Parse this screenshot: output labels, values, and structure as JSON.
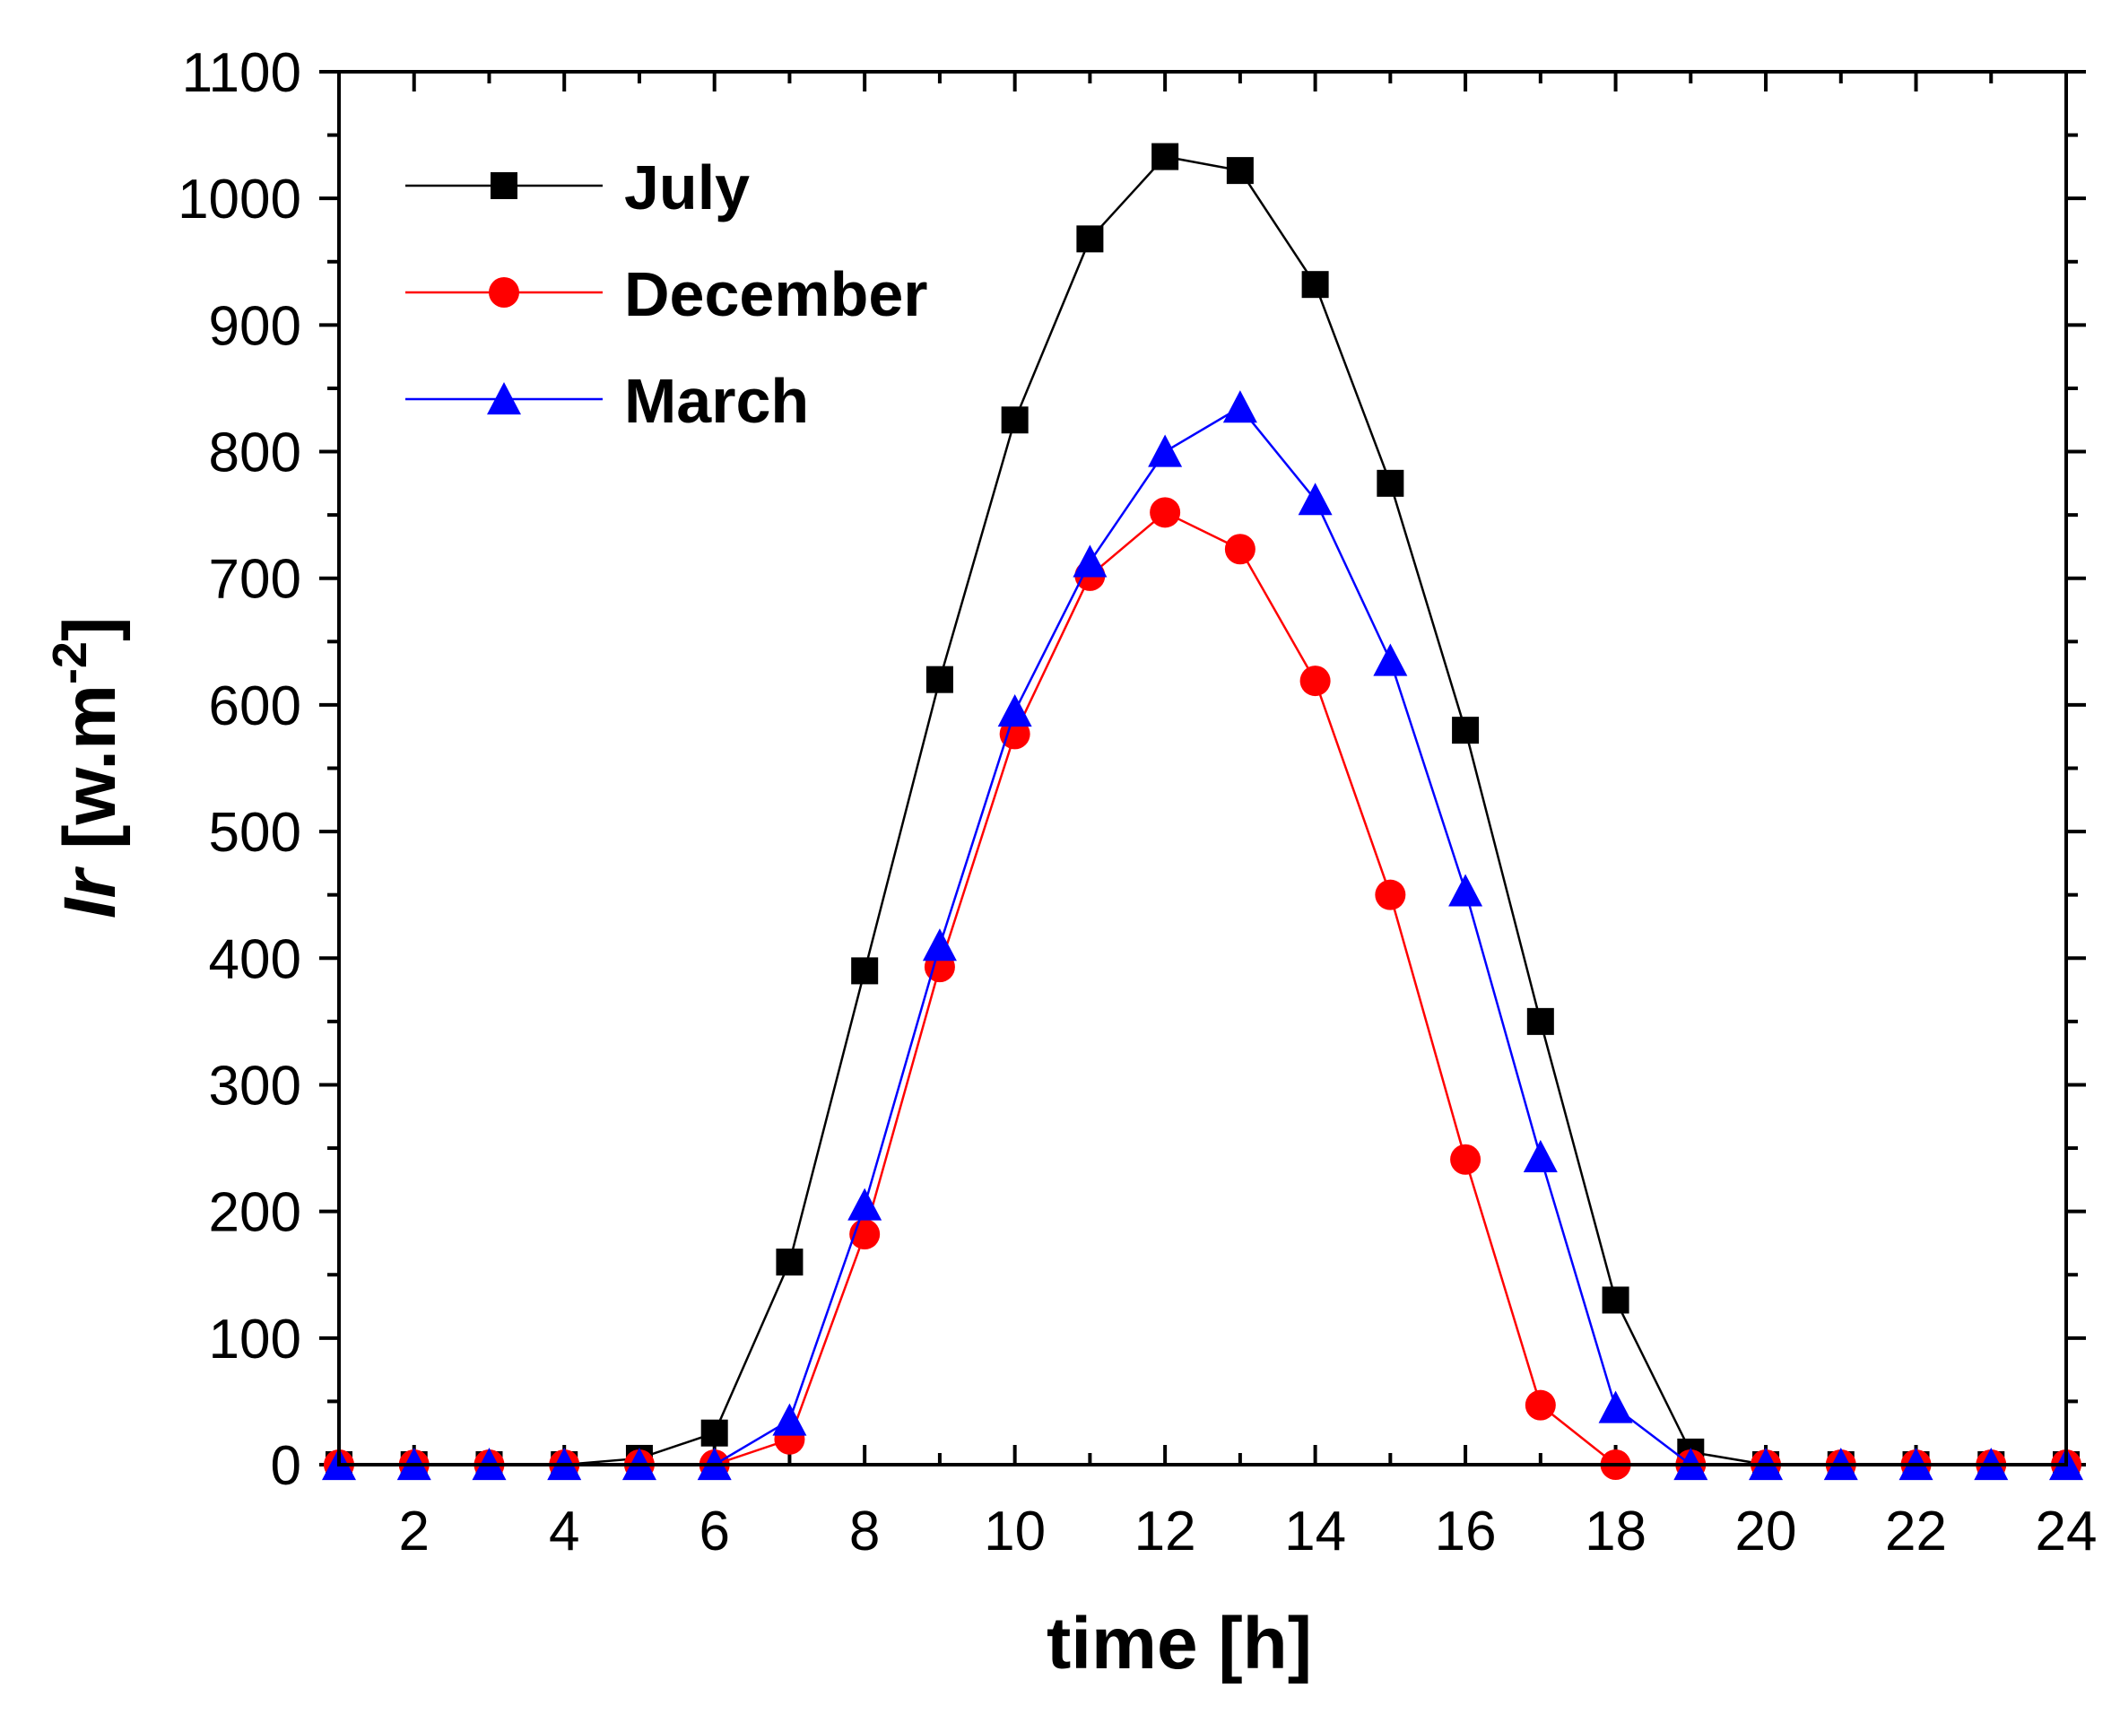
{
  "chart_data": {
    "type": "line",
    "title": "",
    "xlabel": "time [h]",
    "ylabel_main": "Ir",
    "ylabel_unit": " [w.m",
    "ylabel_exp": "-2",
    "ylabel_close": "]",
    "xlim": [
      1,
      24
    ],
    "ylim": [
      0,
      1100
    ],
    "xticks": [
      2,
      4,
      6,
      8,
      10,
      12,
      14,
      16,
      18,
      20,
      22,
      24
    ],
    "yticks": [
      0,
      100,
      200,
      300,
      400,
      500,
      600,
      700,
      800,
      900,
      1000,
      1100
    ],
    "legend_position": "top-left",
    "x": [
      1,
      2,
      3,
      4,
      5,
      6,
      7,
      8,
      9,
      10,
      11,
      12,
      13,
      14,
      15,
      16,
      17,
      18,
      19,
      20,
      21,
      22,
      23,
      24
    ],
    "series": [
      {
        "name": "July",
        "color": "#000000",
        "marker": "square",
        "values": [
          0,
          0,
          0,
          0,
          5,
          25,
          160,
          390,
          620,
          825,
          968,
          1033,
          1022,
          932,
          775,
          580,
          350,
          130,
          10,
          0,
          0,
          0,
          0,
          0
        ]
      },
      {
        "name": "December",
        "color": "#ff0000",
        "marker": "circle",
        "values": [
          0,
          0,
          0,
          0,
          0,
          0,
          20,
          182,
          393,
          577,
          702,
          752,
          723,
          619,
          450,
          241,
          47,
          0,
          0,
          0,
          0,
          0,
          0,
          0
        ]
      },
      {
        "name": "March",
        "color": "#0000ff",
        "marker": "triangle",
        "values": [
          0,
          0,
          0,
          0,
          0,
          0,
          35,
          205,
          410,
          595,
          713,
          800,
          835,
          762,
          635,
          453,
          243,
          45,
          0,
          0,
          0,
          0,
          0,
          0
        ]
      }
    ]
  }
}
